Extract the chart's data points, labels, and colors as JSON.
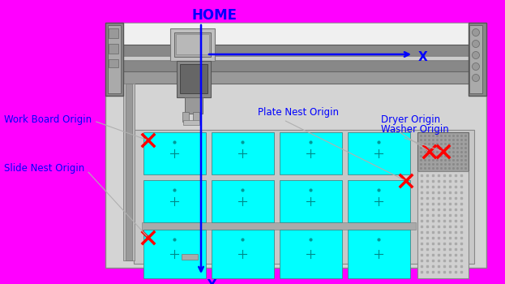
{
  "bg_color": "#FF00FF",
  "title": "HOME",
  "title_color": "#0000FF",
  "title_fontsize": 12,
  "label_color": "#0000FF",
  "label_fontsize": 8.5,
  "cross_color": "#FF0000",
  "arrow_color": "#0000FF",
  "slide_color": "#00FFFF",
  "labels": {
    "work_board_origin": "Work Board Origin",
    "plate_nest_origin": "Plate Nest Origin",
    "dryer_origin": "Dryer Origin",
    "washer_origin": "Washer Origin",
    "slide_nest_origin": "Slide Nest Origin",
    "x_label": "X",
    "y_label": "Y"
  }
}
